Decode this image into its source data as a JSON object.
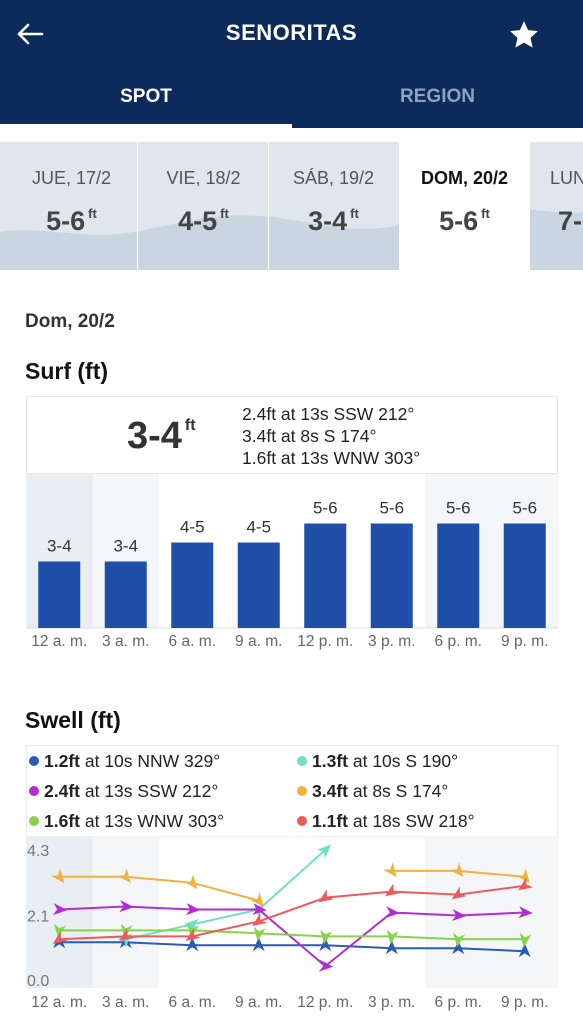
{
  "header": {
    "title": "SENORITAS",
    "tabs": [
      {
        "label": "SPOT",
        "active": true
      },
      {
        "label": "REGION",
        "active": false
      }
    ]
  },
  "days": [
    {
      "name": "JUE, 17/2",
      "value": "5-6",
      "unit": "ft"
    },
    {
      "name": "VIE, 18/2",
      "value": "4-5",
      "unit": "ft"
    },
    {
      "name": "SÁB, 19/2",
      "value": "3-4",
      "unit": "ft"
    },
    {
      "name": "DOM, 20/2",
      "value": "5-6",
      "unit": "ft",
      "selected": true
    },
    {
      "name": "LUN",
      "value": "7-",
      "unit": ""
    }
  ],
  "selected_date": "Dom, 20/2",
  "surf": {
    "title": "Surf (ft)",
    "summary_value": "3-4",
    "summary_unit": "ft",
    "swells": [
      "2.4ft at 13s SSW 212°",
      "3.4ft at 8s S 174°",
      "1.6ft at 13s WNW 303°"
    ]
  },
  "swell": {
    "title": "Swell (ft)",
    "legend": [
      {
        "height": "1.2ft",
        "rest": "at 10s NNW 329°",
        "color": "#2a5bb7"
      },
      {
        "height": "1.3ft",
        "rest": "at 10s S 190°",
        "color": "#6fe0c4"
      },
      {
        "height": "2.4ft",
        "rest": "at 13s SSW 212°",
        "color": "#b42bd6"
      },
      {
        "height": "3.4ft",
        "rest": "at 8s S 174°",
        "color": "#efb23c"
      },
      {
        "height": "1.6ft",
        "rest": "at 13s WNW 303°",
        "color": "#86d44a"
      },
      {
        "height": "1.1ft",
        "rest": "at 18s SW 218°",
        "color": "#ec5a5e"
      }
    ]
  },
  "chart_data": [
    {
      "type": "bar",
      "title": "Surf (ft)",
      "categories": [
        "12 a. m.",
        "3 a. m.",
        "6 a. m.",
        "9 a. m.",
        "12 p. m.",
        "3 p. m.",
        "6 p. m.",
        "9 p. m."
      ],
      "labels": [
        "3-4",
        "3-4",
        "4-5",
        "4-5",
        "5-6",
        "5-6",
        "5-6",
        "5-6"
      ],
      "values": [
        3.5,
        3.5,
        4.5,
        4.5,
        5.5,
        5.5,
        5.5,
        5.5
      ],
      "color": "#1f4fa8"
    },
    {
      "type": "line",
      "title": "Swell (ft)",
      "categories": [
        "12 a. m.",
        "3 a. m.",
        "6 a. m.",
        "9 a. m.",
        "12 p. m.",
        "3 p. m.",
        "6 p. m.",
        "9 p. m."
      ],
      "ylim": [
        0,
        4.3
      ],
      "yticks": [
        "4.3",
        "2.1",
        "0.0"
      ],
      "series": [
        {
          "name": "1.2ft at 10s NNW 329°",
          "color": "#2a5bb7",
          "values": [
            1.2,
            1.2,
            1.1,
            1.1,
            1.1,
            1.0,
            1.0,
            0.9
          ]
        },
        {
          "name": "1.3ft at 10s S 190°",
          "color": "#6fe0c4",
          "values": [
            null,
            1.3,
            1.8,
            2.3,
            4.3,
            null,
            null,
            null
          ]
        },
        {
          "name": "2.4ft at 13s SSW 212°",
          "color": "#b42bd6",
          "values": [
            2.3,
            2.4,
            2.3,
            2.3,
            0.4,
            2.2,
            2.1,
            2.2
          ]
        },
        {
          "name": "3.4ft at 8s S 174°",
          "color": "#efb23c",
          "values": [
            3.4,
            3.4,
            3.2,
            2.6,
            null,
            3.6,
            3.6,
            3.4
          ]
        },
        {
          "name": "1.6ft at 13s WNW 303°",
          "color": "#86d44a",
          "values": [
            1.6,
            1.6,
            1.6,
            1.5,
            1.4,
            1.4,
            1.3,
            1.3
          ]
        },
        {
          "name": "1.1ft at 18s SW 218°",
          "color": "#ec5a5e",
          "values": [
            1.3,
            1.4,
            1.4,
            1.9,
            2.7,
            2.9,
            2.8,
            3.1
          ]
        }
      ]
    }
  ]
}
